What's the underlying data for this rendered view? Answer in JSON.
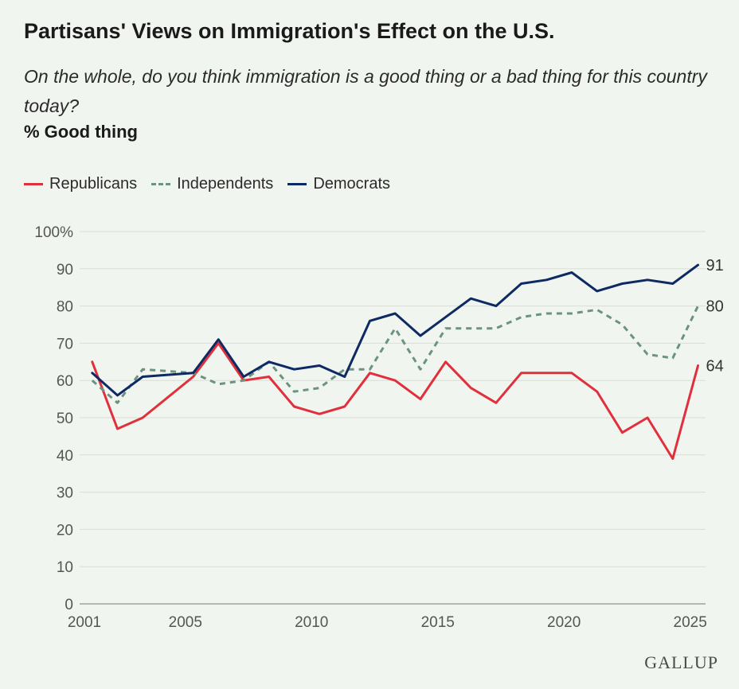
{
  "header": {
    "title": "Partisans' Views on Immigration's Effect on the U.S.",
    "subtitle": "On the whole, do you think immigration is a good thing or a bad thing for this country today?",
    "measure": "% Good thing"
  },
  "brand": {
    "logo_text": "GALLUP"
  },
  "chart_data": {
    "type": "line",
    "y_tick_labels": [
      "0",
      "10",
      "20",
      "30",
      "40",
      "50",
      "60",
      "70",
      "80",
      "90",
      "100%"
    ],
    "y_ticks": [
      0,
      10,
      20,
      30,
      40,
      50,
      60,
      70,
      80,
      90,
      100
    ],
    "x_tick_labels": [
      "2001",
      "2005",
      "2010",
      "2015",
      "2020",
      "2025"
    ],
    "x_ticks": [
      2001,
      2005,
      2010,
      2015,
      2020,
      2025
    ],
    "xlim": [
      2001,
      2025.8
    ],
    "ylim": [
      0,
      100
    ],
    "grid": true,
    "legend_position": "top-left",
    "x": [
      2001.5,
      2002.5,
      2003.5,
      2005.5,
      2006.5,
      2007.5,
      2008.5,
      2009.5,
      2010.5,
      2011.5,
      2012.5,
      2013.5,
      2014.5,
      2015.5,
      2016.5,
      2017.5,
      2018.5,
      2019.5,
      2020.5,
      2021.5,
      2022.5,
      2023.5,
      2024.5,
      2025.5
    ],
    "series": [
      {
        "name": "Republicans",
        "color": "#e0303e",
        "style": "solid",
        "values": [
          65,
          47,
          50,
          61,
          70,
          60,
          61,
          53,
          51,
          53,
          62,
          60,
          55,
          65,
          58,
          54,
          62,
          62,
          62,
          57,
          46,
          50,
          39,
          64
        ],
        "end_label": "64"
      },
      {
        "name": "Independents",
        "color": "#6b9380",
        "style": "dashed",
        "values": [
          60,
          54,
          63,
          62,
          59,
          60,
          65,
          57,
          58,
          63,
          63,
          74,
          63,
          74,
          74,
          74,
          77,
          78,
          78,
          79,
          75,
          67,
          66,
          80
        ],
        "end_label": "80"
      },
      {
        "name": "Democrats",
        "color": "#0e2a63",
        "style": "solid",
        "values": [
          62,
          56,
          61,
          62,
          71,
          61,
          65,
          63,
          64,
          61,
          76,
          78,
          72,
          77,
          82,
          80,
          86,
          87,
          89,
          84,
          86,
          87,
          86,
          91
        ],
        "end_label": "91"
      }
    ]
  }
}
